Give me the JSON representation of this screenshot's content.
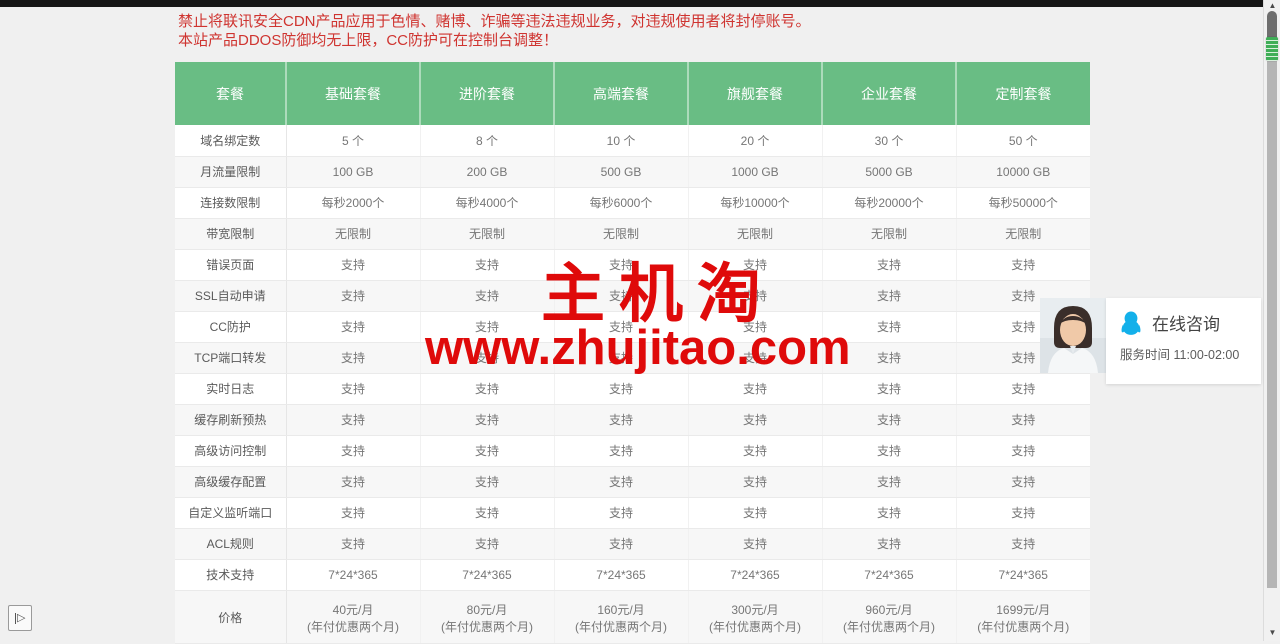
{
  "page": {
    "warning_line1": "禁止将联讯安全CDN产品应用于色情、赌博、诈骗等违法违规业务，对违规使用者将封停账号。",
    "warning_line2": "本站产品DDOS防御均无上限，CC防护可在控制台调整！"
  },
  "table": {
    "headers": [
      "套餐",
      "基础套餐",
      "进阶套餐",
      "高端套餐",
      "旗舰套餐",
      "企业套餐",
      "定制套餐"
    ],
    "rows": [
      {
        "label": "域名绑定数",
        "values": [
          "5 个",
          "8 个",
          "10 个",
          "20 个",
          "30 个",
          "50 个"
        ]
      },
      {
        "label": "月流量限制",
        "values": [
          "100 GB",
          "200 GB",
          "500 GB",
          "1000 GB",
          "5000 GB",
          "10000 GB"
        ]
      },
      {
        "label": "连接数限制",
        "values": [
          "每秒2000个",
          "每秒4000个",
          "每秒6000个",
          "每秒10000个",
          "每秒20000个",
          "每秒50000个"
        ]
      },
      {
        "label": "带宽限制",
        "values": [
          "无限制",
          "无限制",
          "无限制",
          "无限制",
          "无限制",
          "无限制"
        ]
      },
      {
        "label": "错误页面",
        "values": [
          "支持",
          "支持",
          "支持",
          "支持",
          "支持",
          "支持"
        ]
      },
      {
        "label": "SSL自动申请",
        "values": [
          "支持",
          "支持",
          "支持",
          "支持",
          "支持",
          "支持"
        ]
      },
      {
        "label": "CC防护",
        "values": [
          "支持",
          "支持",
          "支持",
          "支持",
          "支持",
          "支持"
        ]
      },
      {
        "label": "TCP端口转发",
        "values": [
          "支持",
          "支持",
          "支持",
          "支持",
          "支持",
          "支持"
        ]
      },
      {
        "label": "实时日志",
        "values": [
          "支持",
          "支持",
          "支持",
          "支持",
          "支持",
          "支持"
        ]
      },
      {
        "label": "缓存刷新预热",
        "values": [
          "支持",
          "支持",
          "支持",
          "支持",
          "支持",
          "支持"
        ]
      },
      {
        "label": "高级访问控制",
        "values": [
          "支持",
          "支持",
          "支持",
          "支持",
          "支持",
          "支持"
        ]
      },
      {
        "label": "高级缓存配置",
        "values": [
          "支持",
          "支持",
          "支持",
          "支持",
          "支持",
          "支持"
        ]
      },
      {
        "label": "自定义监听端口",
        "values": [
          "支持",
          "支持",
          "支持",
          "支持",
          "支持",
          "支持"
        ]
      },
      {
        "label": "ACL规则",
        "values": [
          "支持",
          "支持",
          "支持",
          "支持",
          "支持",
          "支持"
        ]
      },
      {
        "label": "技术支持",
        "values": [
          "7*24*365",
          "7*24*365",
          "7*24*365",
          "7*24*365",
          "7*24*365",
          "7*24*365"
        ]
      },
      {
        "label": "价格",
        "values": [
          [
            "40元/月",
            "(年付优惠两个月)"
          ],
          [
            "80元/月",
            "(年付优惠两个月)"
          ],
          [
            "160元/月",
            "(年付优惠两个月)"
          ],
          [
            "300元/月",
            "(年付优惠两个月)"
          ],
          [
            "960元/月",
            "(年付优惠两个月)"
          ],
          [
            "1699元/月",
            "(年付优惠两个月)"
          ]
        ]
      }
    ]
  },
  "watermark": {
    "text_cn": "主机淘",
    "text_url": "www.zhujitao.com",
    "color": "#df0a0a"
  },
  "chat": {
    "title": "在线咨询",
    "service_time": "服务时间 11:00-02:00",
    "qq_icon": "qq-penguin",
    "qq_color": "#13b0ea"
  },
  "colors": {
    "header_green": "#69bd84",
    "warning_red": "#cf3430",
    "page_background": "#f0f0f0",
    "zebra_gray": "#f7f7f7"
  },
  "icons": {
    "scroll_up": "▲",
    "scroll_down": "▼",
    "expander": "▷"
  }
}
